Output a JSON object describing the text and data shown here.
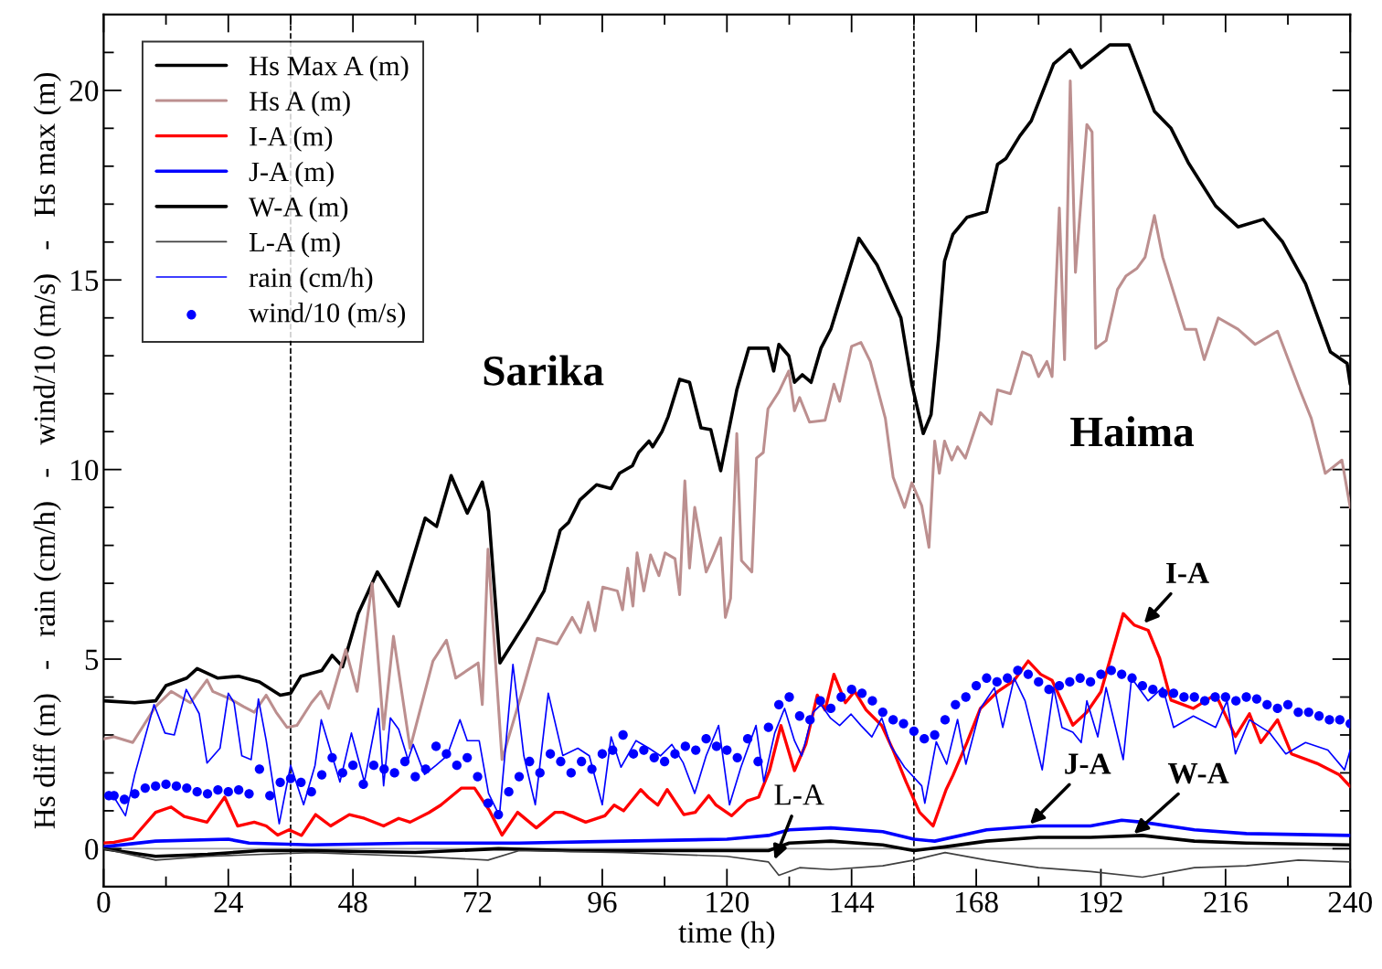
{
  "chart_data": {
    "type": "line",
    "xlabel": "time (h)",
    "ylabel": "Hs diff (m)   -   rain (cm/h)   -   wind/10 (m/s)   -   Hs max (m)",
    "xlim": [
      0,
      240
    ],
    "ylim": [
      -1,
      22
    ],
    "xticks": [
      0,
      24,
      48,
      72,
      96,
      120,
      144,
      168,
      192,
      216,
      240
    ],
    "yticks": [
      0,
      5,
      10,
      15,
      20
    ],
    "grid": false,
    "legend": "top left",
    "line_style": "solid",
    "ref_lines": [
      {
        "axis": "y",
        "value": 0,
        "color": "#a0a0a0",
        "line_style": "solid"
      },
      {
        "axis": "x",
        "value": 36,
        "color": "#000000",
        "line_style": "dashed"
      },
      {
        "axis": "x",
        "value": 156,
        "color": "#000000",
        "line_style": "dashed"
      }
    ],
    "annotations": [
      "Sarika",
      "Haima",
      {
        "text": "I-A",
        "x": 200,
        "y": 5.9
      },
      {
        "text": "J-A",
        "x": 178,
        "y": 0.6
      },
      {
        "text": "W-A",
        "x": 198,
        "y": 0.35
      },
      {
        "text": "L-A",
        "x": 129,
        "y": -0.35
      }
    ],
    "series": [
      {
        "name": "Hs Max A (m)",
        "color": "#000000",
        "x": [
          0,
          6,
          10,
          12,
          16,
          18,
          22,
          26,
          30,
          34,
          36,
          38,
          42,
          44,
          46,
          49,
          52.7,
          56.8,
          61.9,
          64.1,
          66.9,
          70,
          72.9,
          74.1,
          76.3,
          81.7,
          84.8,
          87.9,
          89.5,
          91.7,
          94.9,
          97.7,
          99.3,
          101.8,
          103,
          105,
          105.7,
          107.5,
          108.7,
          110.9,
          112.8,
          115,
          116.9,
          118.8,
          121.9,
          124.2,
          127.9,
          129,
          130,
          131.9,
          133,
          134.5,
          136.2,
          138.1,
          140,
          145.4,
          148.9,
          153.5,
          155.6,
          157.8,
          159.3,
          160.7,
          161.9,
          163.5,
          166.2,
          170,
          172.1,
          173.7,
          176.4,
          178.6,
          182.9,
          186.1,
          188.2,
          193.7,
          197.4,
          202.3,
          205.5,
          208.8,
          214.1,
          218.4,
          223.3,
          227,
          231.4,
          236.2,
          239.4,
          240
        ],
        "values": [
          3.9,
          3.85,
          3.9,
          4.3,
          4.5,
          4.75,
          4.5,
          4.55,
          4.4,
          4.05,
          4.1,
          4.55,
          4.7,
          5.1,
          4.8,
          6.2,
          7.3,
          6.4,
          8.72,
          8.5,
          9.84,
          8.85,
          9.67,
          8.9,
          4.9,
          6.07,
          6.8,
          8.4,
          8.6,
          9.2,
          9.6,
          9.5,
          9.9,
          10.1,
          10.45,
          10.75,
          10.6,
          11.0,
          11.4,
          12.38,
          12.3,
          11.1,
          11.05,
          9.97,
          12.1,
          13.2,
          13.2,
          12.6,
          13.3,
          13.0,
          12.3,
          12.5,
          12.3,
          13.2,
          13.7,
          16.1,
          15.4,
          14.0,
          12.25,
          10.95,
          11.45,
          13.4,
          15.5,
          16.2,
          16.65,
          16.8,
          18.05,
          18.2,
          18.8,
          19.2,
          20.7,
          21.07,
          20.6,
          21.2,
          21.2,
          19.45,
          19.0,
          18.1,
          16.95,
          16.4,
          16.6,
          16.0,
          14.9,
          13.1,
          12.8,
          12.25
        ]
      },
      {
        "name": "Hs A (m)",
        "color": "#bc8f8f",
        "x": [
          0,
          2,
          5.6,
          10,
          13,
          16.7,
          19.9,
          21,
          24.4,
          26.9,
          29,
          31.3,
          33.2,
          35.3,
          37.2,
          40,
          41.8,
          43.3,
          46.6,
          48.8,
          51.7,
          53.9,
          55.8,
          59,
          63.4,
          66,
          67.8,
          72.1,
          72.9,
          74,
          76.7,
          80.6,
          83.5,
          87.3,
          90.2,
          91.8,
          93.3,
          94.6,
          96.1,
          98.9,
          99.9,
          100.9,
          101.9,
          102.7,
          104,
          105.3,
          106.9,
          108.1,
          110,
          110.9,
          111.9,
          112.8,
          113.8,
          116,
          117,
          118.8,
          119.7,
          120.7,
          121.9,
          122.8,
          124.8,
          125.7,
          127,
          127.9,
          130,
          131.9,
          133,
          134,
          135.9,
          138.9,
          140.6,
          141.7,
          144,
          145.8,
          147.6,
          150.5,
          152,
          154.2,
          155.6,
          157.5,
          158.9,
          160,
          160.9,
          161.9,
          162.3,
          163.3,
          164.4,
          165.9,
          168.8,
          170.9,
          172.1,
          174.6,
          176.9,
          178.5,
          180,
          181.6,
          182.6,
          184,
          185,
          186.1,
          187.1,
          189.3,
          190.3,
          191,
          193,
          195.2,
          196.8,
          198.9,
          200.5,
          202.3,
          203.9,
          208.2,
          210.3,
          211.9,
          214.6,
          218.4,
          221.7,
          226,
          230.3,
          232.5,
          235.2,
          238.4,
          240
        ],
        "values": [
          2.9,
          2.95,
          2.8,
          3.75,
          4.15,
          3.85,
          4.45,
          4.15,
          3.95,
          3.75,
          3.6,
          4.05,
          3.6,
          3.2,
          3.25,
          3.85,
          4.15,
          3.7,
          5.25,
          4.15,
          7.0,
          3.15,
          5.6,
          2.65,
          4.95,
          5.5,
          4.5,
          4.9,
          3.8,
          7.9,
          2.35,
          4.15,
          5.55,
          5.4,
          6.1,
          5.7,
          6.5,
          5.75,
          6.9,
          6.8,
          6.3,
          7.4,
          6.4,
          7.8,
          6.8,
          7.75,
          7.2,
          7.8,
          7.65,
          6.7,
          9.7,
          7.4,
          9.0,
          7.3,
          7.6,
          8.2,
          6.1,
          6.6,
          10.95,
          7.6,
          7.3,
          10.3,
          10.45,
          11.6,
          12.05,
          12.6,
          11.55,
          11.9,
          11.25,
          11.3,
          12.25,
          11.8,
          13.25,
          13.35,
          12.85,
          11.35,
          9.8,
          9.0,
          9.65,
          9.05,
          7.95,
          10.75,
          9.9,
          10.75,
          10.6,
          10.25,
          10.6,
          10.3,
          11.5,
          11.2,
          12.1,
          12.0,
          13.1,
          13.0,
          12.45,
          12.85,
          12.45,
          16.9,
          12.9,
          20.25,
          15.2,
          19.1,
          18.9,
          13.2,
          13.4,
          14.75,
          15.1,
          15.3,
          15.6,
          16.7,
          15.6,
          13.7,
          13.7,
          12.9,
          14.0,
          13.7,
          13.3,
          13.65,
          12.1,
          11.35,
          9.9,
          10.25,
          9.0
        ]
      },
      {
        "name": "I-A (m)",
        "color": "#ff0000",
        "x": [
          0,
          2,
          5.6,
          10,
          13,
          15.5,
          19.9,
          23.3,
          25.8,
          29,
          31.3,
          33.5,
          35.7,
          38.1,
          40.8,
          43.7,
          47.3,
          50.2,
          53.9,
          56.8,
          59,
          62.6,
          64.9,
          68.9,
          71.4,
          74.3,
          76.7,
          79.7,
          83.3,
          86.9,
          88.4,
          92.8,
          96.5,
          98.3,
          100.1,
          103.4,
          104.8,
          106.7,
          108.5,
          111.7,
          113.9,
          116.5,
          117.9,
          120.9,
          123.9,
          126.1,
          128.2,
          130.4,
          133,
          135.2,
          137.4,
          138.9,
          140.6,
          142.8,
          144.6,
          146.8,
          149.8,
          152,
          154.5,
          157.1,
          159.7,
          162.2,
          163.5,
          166.2,
          168.8,
          172.1,
          175.3,
          178,
          180.4,
          182.6,
          186.6,
          189.3,
          192,
          196.3,
          198.4,
          201.1,
          203.3,
          205.5,
          209.8,
          214.1,
          217.9,
          220.6,
          222.8,
          226,
          228.7,
          233.6,
          237.9,
          240
        ],
        "values": [
          0.15,
          0.17,
          0.27,
          0.96,
          1.1,
          0.85,
          0.7,
          1.36,
          0.6,
          0.7,
          0.6,
          0.36,
          0.5,
          0.35,
          0.9,
          0.6,
          0.9,
          0.8,
          0.6,
          0.8,
          0.7,
          0.95,
          1.15,
          1.6,
          1.6,
          1.0,
          0.36,
          0.96,
          0.55,
          0.96,
          0.96,
          0.7,
          0.87,
          1.15,
          1.0,
          1.56,
          1.36,
          1.15,
          1.56,
          0.9,
          0.96,
          1.4,
          1.15,
          0.87,
          1.26,
          1.36,
          2.06,
          3.25,
          2.06,
          2.76,
          4.05,
          3.66,
          4.6,
          3.85,
          4.15,
          3.66,
          3.25,
          2.6,
          1.76,
          0.96,
          0.6,
          1.56,
          1.93,
          2.8,
          3.7,
          4.14,
          4.44,
          4.95,
          4.6,
          4.44,
          3.26,
          3.6,
          4.14,
          6.2,
          5.9,
          5.76,
          5.03,
          3.92,
          3.7,
          4.07,
          2.96,
          3.56,
          2.8,
          3.4,
          2.5,
          2.25,
          1.95,
          1.64
        ]
      },
      {
        "name": "J-A (m)",
        "color": "#0000ff",
        "x": [
          0,
          10,
          24,
          28,
          40,
          60,
          80,
          100,
          120,
          128,
          132,
          140,
          150,
          156,
          160,
          170,
          180,
          190,
          196,
          200,
          210,
          220,
          240
        ],
        "values": [
          0.05,
          0.2,
          0.25,
          0.15,
          0.1,
          0.15,
          0.15,
          0.2,
          0.25,
          0.35,
          0.5,
          0.55,
          0.45,
          0.25,
          0.2,
          0.5,
          0.6,
          0.6,
          0.75,
          0.7,
          0.5,
          0.4,
          0.35
        ]
      },
      {
        "name": "W-A (m)",
        "color": "#000000",
        "x": [
          0,
          10,
          20,
          30,
          40,
          60,
          76,
          90,
          110,
          128,
          132,
          140,
          150,
          156,
          162,
          170,
          180,
          190,
          200,
          210,
          220,
          240
        ],
        "values": [
          0,
          -0.2,
          -0.15,
          -0.05,
          -0.05,
          -0.1,
          0.0,
          -0.05,
          -0.05,
          -0.05,
          0.15,
          0.2,
          0.1,
          -0.05,
          0.05,
          0.2,
          0.3,
          0.3,
          0.35,
          0.2,
          0.15,
          0.1
        ]
      },
      {
        "name": "L-A (m)",
        "color": "#404040",
        "x": [
          0,
          10,
          20,
          40,
          60,
          74,
          80,
          100,
          120,
          128,
          130,
          134,
          140,
          150,
          156,
          162,
          170,
          180,
          190,
          200,
          210,
          220,
          230,
          240
        ],
        "values": [
          0,
          -0.3,
          -0.2,
          -0.1,
          -0.2,
          -0.3,
          -0.05,
          -0.1,
          -0.2,
          -0.35,
          -0.7,
          -0.5,
          -0.55,
          -0.45,
          -0.3,
          -0.1,
          -0.3,
          -0.5,
          -0.6,
          -0.75,
          -0.5,
          -0.45,
          -0.3,
          -0.35
        ]
      },
      {
        "name": "rain (cm/h)",
        "color": "#0000ff",
        "x": [
          2,
          4.2,
          6,
          9.7,
          11.8,
          13.6,
          15.9,
          18.4,
          19.9,
          22.4,
          24,
          25.1,
          26.6,
          28.4,
          29.8,
          31.3,
          33.8,
          36,
          38.5,
          40.7,
          41.9,
          43.3,
          45.5,
          47.7,
          50.2,
          52.9,
          53.9,
          55.2,
          56.8,
          58.6,
          59.6,
          61.8,
          64,
          66.1,
          68.6,
          70,
          72.3,
          74.1,
          76.2,
          78.8,
          80.9,
          83.1,
          85.6,
          88.4,
          91.3,
          93.5,
          96,
          97.7,
          99.6,
          102.5,
          105,
          107.2,
          109.4,
          111.6,
          113.8,
          116,
          118.4,
          120.5,
          122.7,
          125.6,
          127.1,
          129.2,
          131.1,
          133,
          134.4,
          136.6,
          138.1,
          139.9,
          141.7,
          143.9,
          145.8,
          147.9,
          149.8,
          151.6,
          154.2,
          157.5,
          158.1,
          160.3,
          162.3,
          164.4,
          166,
          168.8,
          171.5,
          173.1,
          175.3,
          177.4,
          180.7,
          182.9,
          184.5,
          186.6,
          188.2,
          189.3,
          191.4,
          193,
          196.3,
          197.9,
          201.1,
          203.9,
          206,
          209.8,
          214.1,
          216.3,
          217.9,
          220.6,
          224.4,
          227.6,
          231.4,
          235.7,
          238.9,
          240
        ],
        "values": [
          1.36,
          0.87,
          1.96,
          3.8,
          3.05,
          3.0,
          4.2,
          3.56,
          2.26,
          2.65,
          4.1,
          3.85,
          2.45,
          2.35,
          3.95,
          2.85,
          0.66,
          2.2,
          1.16,
          2.2,
          3.4,
          2.76,
          1.76,
          3.05,
          1.76,
          3.7,
          1.66,
          3.45,
          3.15,
          2.35,
          2.75,
          1.96,
          2.2,
          2.45,
          3.4,
          2.85,
          2.85,
          1.46,
          0.87,
          4.86,
          2.45,
          1.16,
          4.1,
          2.46,
          2.65,
          2.45,
          1.16,
          2.95,
          2.15,
          2.85,
          2.65,
          2.45,
          2.75,
          2.26,
          1.46,
          2.45,
          3.25,
          1.16,
          2.15,
          3.25,
          1.76,
          3.05,
          3.7,
          2.85,
          2.45,
          3.6,
          3.8,
          3.45,
          3.25,
          3.55,
          3.25,
          2.95,
          3.45,
          2.7,
          2.15,
          1.66,
          1.2,
          2.82,
          2.23,
          3.41,
          2.23,
          3.7,
          4.25,
          3.2,
          4.5,
          3.9,
          2.08,
          4.25,
          3.2,
          3.07,
          2.8,
          3.9,
          2.95,
          4.25,
          2.35,
          4.5,
          3.9,
          4.25,
          3.2,
          3.5,
          3.2,
          3.9,
          2.5,
          3.4,
          3.07,
          2.5,
          2.8,
          2.6,
          2.08,
          2.6
        ]
      },
      {
        "name": "wind/10 (m/s)",
        "type": "scatter",
        "marker": "circle",
        "color": "#0000ff",
        "x": [
          1,
          2,
          4,
          6,
          8,
          10,
          12,
          14,
          16,
          18,
          20,
          22,
          24,
          26,
          28,
          30,
          32,
          34,
          36,
          38,
          40,
          42,
          44,
          46,
          48,
          50,
          52,
          54,
          56,
          58,
          60,
          62,
          64,
          66,
          68,
          70,
          72,
          74,
          76,
          78,
          80,
          82,
          84,
          86,
          88,
          90,
          92,
          94,
          96,
          98,
          100,
          102,
          104,
          106,
          108,
          110,
          112,
          114,
          116,
          118,
          120,
          122,
          124,
          126,
          128,
          130,
          132,
          134,
          136,
          138,
          140,
          142,
          144,
          146,
          148,
          150,
          152,
          154,
          156,
          158,
          160,
          162,
          164,
          166,
          168,
          170,
          172,
          174,
          176,
          178,
          180,
          182,
          184,
          186,
          188,
          190,
          192,
          194,
          196,
          198,
          200,
          202,
          204,
          206,
          208,
          210,
          212,
          214,
          216,
          218,
          220,
          222,
          224,
          226,
          228,
          230,
          232,
          234,
          236,
          238,
          240
        ],
        "values": [
          1.4,
          1.4,
          1.3,
          1.45,
          1.6,
          1.65,
          1.7,
          1.65,
          1.6,
          1.5,
          1.45,
          1.55,
          1.5,
          1.55,
          1.45,
          2.1,
          1.4,
          1.75,
          1.85,
          1.75,
          1.5,
          1.95,
          2.4,
          2.0,
          2.2,
          1.7,
          2.2,
          2.1,
          2.0,
          2.3,
          1.9,
          2.1,
          2.7,
          2.5,
          2.2,
          2.4,
          1.9,
          1.2,
          0.9,
          1.5,
          1.9,
          2.3,
          2.0,
          2.5,
          2.3,
          2.0,
          2.3,
          2.1,
          2.5,
          2.6,
          3.0,
          2.5,
          2.6,
          2.4,
          2.3,
          2.5,
          2.7,
          2.6,
          2.9,
          2.7,
          2.6,
          2.4,
          2.9,
          2.3,
          3.2,
          3.8,
          4.0,
          3.5,
          3.4,
          3.9,
          3.7,
          4.0,
          4.2,
          4.1,
          3.9,
          3.6,
          3.4,
          3.3,
          3.1,
          2.9,
          3.0,
          3.4,
          3.8,
          4.0,
          4.3,
          4.5,
          4.4,
          4.5,
          4.7,
          4.6,
          4.4,
          4.2,
          4.3,
          4.4,
          4.5,
          4.4,
          4.6,
          4.7,
          4.6,
          4.5,
          4.3,
          4.2,
          4.1,
          4.1,
          4.0,
          4.0,
          3.9,
          4.0,
          4.0,
          3.9,
          4.0,
          3.95,
          3.8,
          3.7,
          3.8,
          3.6,
          3.6,
          3.5,
          3.4,
          3.4,
          3.3
        ]
      }
    ]
  }
}
